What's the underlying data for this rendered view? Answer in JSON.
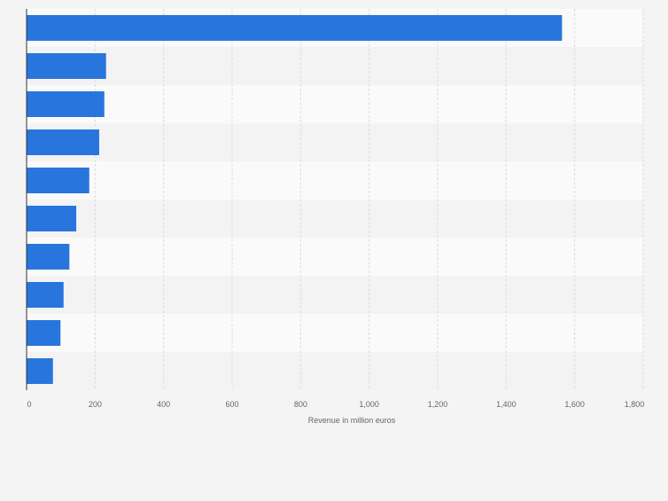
{
  "chart_data": {
    "type": "bar",
    "orientation": "horizontal",
    "title": "",
    "xlabel": "Revenue in million euros",
    "ylabel": "",
    "categories": [
      "",
      "",
      "",
      "",
      "",
      "",
      "",
      "",
      "",
      ""
    ],
    "values": [
      1563,
      232,
      227,
      212,
      183,
      145,
      125,
      108,
      99,
      77
    ],
    "xlim": [
      0,
      1800
    ],
    "xticks": [
      0,
      200,
      400,
      600,
      800,
      1000,
      1200,
      1400,
      1600,
      1800
    ],
    "xtick_labels": [
      "0",
      "200",
      "400",
      "600",
      "800",
      "1,000",
      "1,200",
      "1,400",
      "1,600",
      "1,800"
    ],
    "grid": true,
    "legend": "none",
    "colors": {
      "bar": "#2876dd",
      "page_background": "#f4f4f4",
      "band_light": "#fafafa",
      "band_dark": "#f3f3f3",
      "gridline": "#dcdcdc",
      "axis_line": "#333333",
      "tick_text": "#666666"
    }
  }
}
